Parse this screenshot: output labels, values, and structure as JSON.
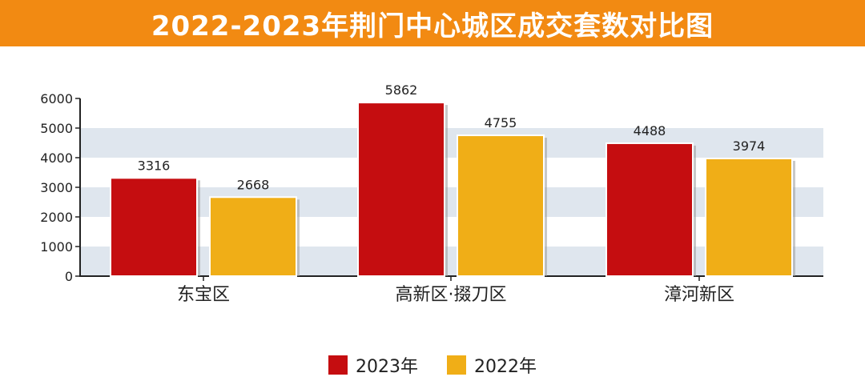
{
  "chart_data": {
    "type": "bar",
    "title": "2022-2023年荆门中心城区成交套数对比图",
    "categories": [
      "东宝区",
      "高新区·掇刀区",
      "漳河新区"
    ],
    "series": [
      {
        "name": "2023年",
        "color": "#c50d10",
        "values": [
          3316,
          5862,
          4488
        ]
      },
      {
        "name": "2022年",
        "color": "#f0ae17",
        "values": [
          2668,
          4755,
          3974
        ]
      }
    ],
    "ylim": [
      0,
      6000
    ],
    "yticks": [
      0,
      1000,
      2000,
      3000,
      4000,
      5000,
      6000
    ],
    "grid": "alternating horizontal bands",
    "legend": "bottom-center",
    "colors": {
      "title_bg": "#f28a12",
      "band": "#dfe6ee"
    }
  }
}
